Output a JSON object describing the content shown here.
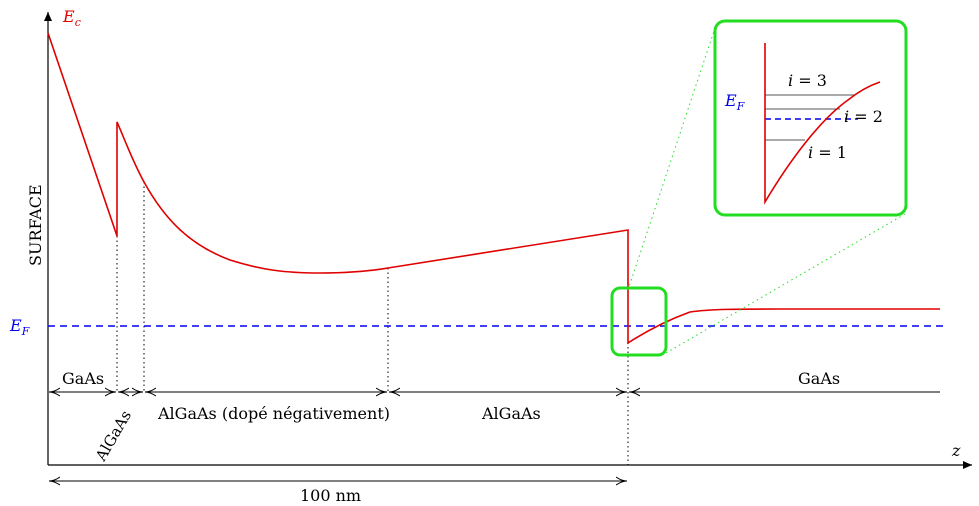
{
  "axes": {
    "y_label": "E",
    "y_label_sub": "c",
    "x_label": "z",
    "side_label": "SURFACE"
  },
  "fermi": {
    "label": "E",
    "label_sub": "F"
  },
  "regions": [
    {
      "id": "gaas-left",
      "label": "GaAs"
    },
    {
      "id": "algaas-thin",
      "label": "AlGaAs"
    },
    {
      "id": "algaas-doped",
      "label": "AlGaAs (dopé négativement)"
    },
    {
      "id": "algaas",
      "label": "AlGaAs"
    },
    {
      "id": "gaas-right",
      "label": "GaAs"
    }
  ],
  "scale": {
    "label": "100 nm"
  },
  "inset": {
    "fermi_label": "E",
    "fermi_sub": "F",
    "levels": [
      {
        "var": "i",
        "eq": " = 3"
      },
      {
        "var": "i",
        "eq": " = 2"
      },
      {
        "var": "i",
        "eq": " = 1"
      }
    ]
  },
  "colors": {
    "band": "#e00000",
    "fermi": "#0000ee",
    "highlight": "#22dd22",
    "axis": "#000000"
  }
}
